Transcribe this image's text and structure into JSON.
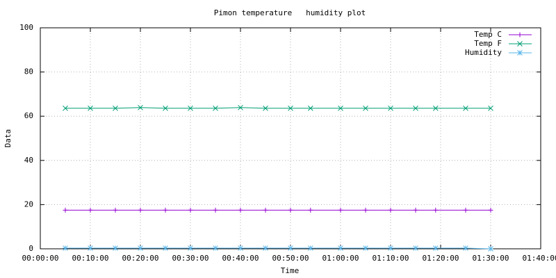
{
  "chart_data": {
    "type": "line",
    "title": "Pimon temperature   humidity plot",
    "xlabel": "Time",
    "ylabel": "Data",
    "x": [
      "00:05:00",
      "00:10:00",
      "00:15:00",
      "00:20:00",
      "00:25:00",
      "00:30:00",
      "00:35:00",
      "00:40:00",
      "00:45:00",
      "00:50:00",
      "00:54:00",
      "01:00:00",
      "01:05:00",
      "01:10:00",
      "01:15:00",
      "01:19:00",
      "01:25:00",
      "01:30:00"
    ],
    "series": [
      {
        "name": "Temp C",
        "color": "#9400d3",
        "marker": "plus",
        "values": [
          17.5,
          17.5,
          17.5,
          17.5,
          17.5,
          17.5,
          17.5,
          17.5,
          17.5,
          17.5,
          17.5,
          17.5,
          17.5,
          17.5,
          17.5,
          17.5,
          17.5,
          17.5
        ]
      },
      {
        "name": "Temp F",
        "color": "#009e73",
        "marker": "cross",
        "values": [
          63.6,
          63.6,
          63.6,
          63.9,
          63.6,
          63.6,
          63.6,
          63.9,
          63.6,
          63.6,
          63.6,
          63.6,
          63.6,
          63.6,
          63.6,
          63.6,
          63.6,
          63.6
        ]
      },
      {
        "name": "Humidity",
        "color": "#56b4e9",
        "marker": "star",
        "values": [
          0.3,
          0.3,
          0.3,
          0.3,
          0.3,
          0.3,
          0.3,
          0.3,
          0.3,
          0.3,
          0.3,
          0.3,
          0.3,
          0.3,
          0.3,
          0.3,
          0.3,
          0
        ]
      }
    ],
    "xlim": [
      "00:00:00",
      "01:40:00"
    ],
    "xticks": [
      "00:00:00",
      "00:10:00",
      "00:20:00",
      "00:30:00",
      "00:40:00",
      "00:50:00",
      "01:00:00",
      "01:10:00",
      "01:20:00",
      "01:30:00",
      "01:40:00"
    ],
    "ylim": [
      0,
      100
    ],
    "yticks": [
      0,
      20,
      40,
      60,
      80,
      100
    ],
    "grid": true,
    "legend": "top-right"
  }
}
